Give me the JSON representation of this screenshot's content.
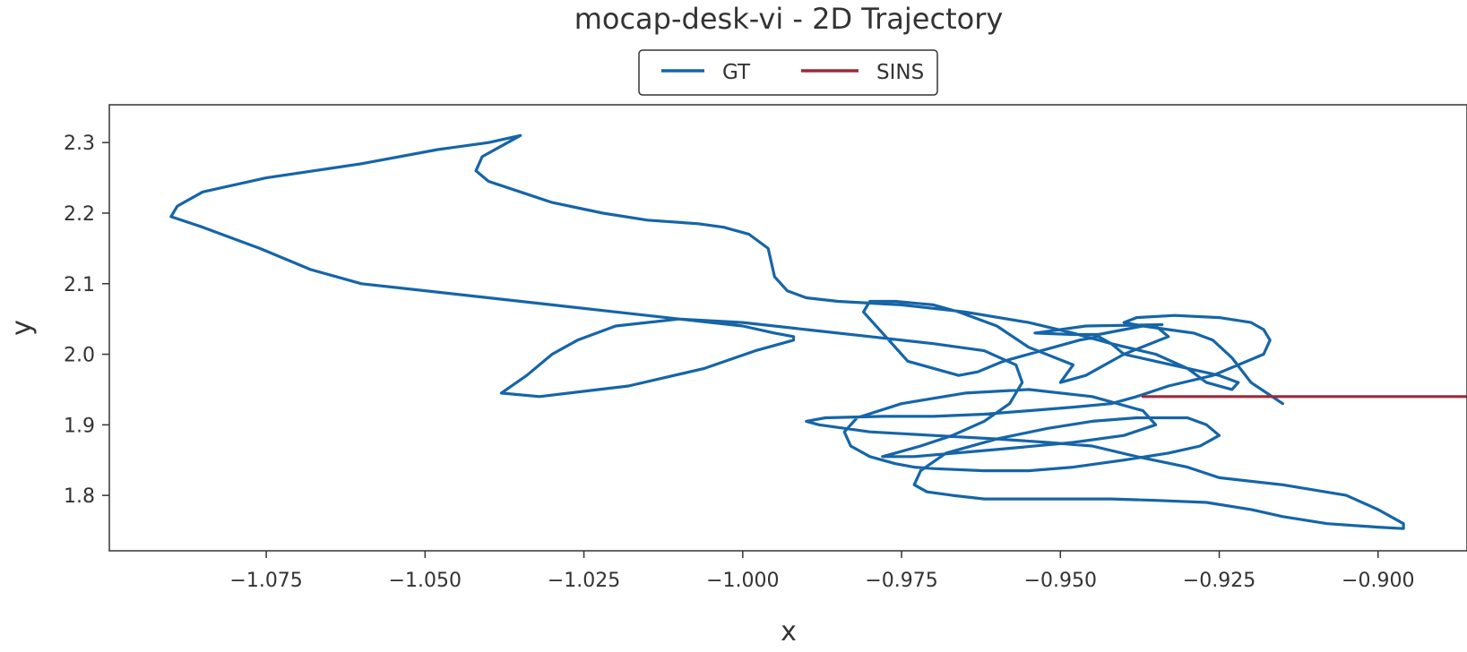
{
  "chart_data": {
    "type": "line",
    "title": "mocap-desk-vi - 2D Trajectory",
    "xlabel": "x",
    "ylabel": "y",
    "xlim": [
      -1.0997,
      -0.886
    ],
    "ylim": [
      1.7215,
      2.3535
    ],
    "xticks": [
      -1.075,
      -1.05,
      -1.025,
      -1.0,
      -0.975,
      -0.95,
      -0.925,
      -0.9
    ],
    "xtick_labels": [
      "−1.075",
      "−1.050",
      "−1.025",
      "−1.000",
      "−0.975",
      "−0.950",
      "−0.925",
      "−0.900"
    ],
    "yticks": [
      1.8,
      1.9,
      2.0,
      2.1,
      2.2,
      2.3
    ],
    "ytick_labels": [
      "1.8",
      "1.9",
      "2.0",
      "2.1",
      "2.2",
      "2.3"
    ],
    "grid": false,
    "legend": {
      "position": "top-center",
      "columns": 2
    },
    "series": [
      {
        "name": "GT",
        "color": "#1565a8",
        "x": [
          -0.934,
          -0.946,
          -0.954,
          -0.948,
          -0.944,
          -0.94,
          -0.937,
          -0.935,
          -0.933,
          -0.94,
          -0.946,
          -0.95,
          -0.948,
          -0.955,
          -0.96,
          -0.966,
          -0.97,
          -0.976,
          -0.98,
          -0.981,
          -0.978,
          -0.974,
          -0.966,
          -0.963,
          -0.959,
          -0.953,
          -0.947,
          -0.944,
          -0.942,
          -0.94,
          -0.935,
          -0.93,
          -0.925,
          -0.922,
          -0.923,
          -0.927,
          -0.93,
          -0.935,
          -0.942,
          -0.948,
          -0.955,
          -0.965,
          -0.975,
          -0.985,
          -0.99,
          -0.993,
          -0.995,
          -0.996,
          -0.999,
          -1.003,
          -1.007,
          -1.015,
          -1.022,
          -1.03,
          -1.035,
          -1.04,
          -1.042,
          -1.041,
          -1.037,
          -1.035,
          -1.04,
          -1.048,
          -1.06,
          -1.075,
          -1.085,
          -1.089,
          -1.09,
          -1.085,
          -1.076,
          -1.068,
          -1.06,
          -1.05,
          -1.04,
          -1.03,
          -1.02,
          -1.01,
          -1.0,
          -0.995,
          -0.992,
          -0.992,
          -0.998,
          -1.006,
          -1.018,
          -1.032,
          -1.038,
          -1.034,
          -1.03,
          -1.026,
          -1.02,
          -1.01,
          -1.0,
          -0.99,
          -0.98,
          -0.97,
          -0.962,
          -0.957,
          -0.956,
          -0.958,
          -0.962,
          -0.967,
          -0.972,
          -0.976,
          -0.978,
          -0.973,
          -0.96,
          -0.948,
          -0.94,
          -0.935,
          -0.937,
          -0.945,
          -0.955,
          -0.965,
          -0.975,
          -0.982,
          -0.984,
          -0.983,
          -0.98,
          -0.976,
          -0.973,
          -0.97,
          -0.962,
          -0.955,
          -0.948,
          -0.94,
          -0.933,
          -0.928,
          -0.925,
          -0.927,
          -0.93,
          -0.938,
          -0.945,
          -0.952,
          -0.96,
          -0.968,
          -0.972,
          -0.973,
          -0.971,
          -0.967,
          -0.964,
          -0.962,
          -0.958,
          -0.95,
          -0.942,
          -0.935,
          -0.927,
          -0.92,
          -0.915,
          -0.908,
          -0.9,
          -0.896,
          -0.896,
          -0.9,
          -0.905,
          -0.915,
          -0.925,
          -0.93,
          -0.938,
          -0.945,
          -0.952,
          -0.96,
          -0.97,
          -0.98,
          -0.988,
          -0.99,
          -0.987,
          -0.978,
          -0.97,
          -0.962,
          -0.955,
          -0.948,
          -0.942,
          -0.938,
          -0.933,
          -0.926,
          -0.922,
          -0.918,
          -0.917,
          -0.918,
          -0.92,
          -0.925,
          -0.932,
          -0.938,
          -0.94,
          -0.937,
          -0.933,
          -0.929,
          -0.926,
          -0.923,
          -0.92,
          -0.915
        ],
        "y": [
          2.042,
          2.04,
          2.03,
          2.028,
          2.028,
          2.035,
          2.04,
          2.04,
          2.025,
          2.0,
          1.97,
          1.96,
          1.985,
          2.01,
          2.04,
          2.06,
          2.07,
          2.075,
          2.075,
          2.06,
          2.03,
          1.99,
          1.97,
          1.975,
          1.99,
          2.005,
          2.02,
          2.025,
          2.015,
          2.0,
          1.99,
          1.98,
          1.97,
          1.96,
          1.95,
          1.96,
          1.98,
          2.0,
          2.015,
          2.03,
          2.045,
          2.06,
          2.07,
          2.075,
          2.08,
          2.09,
          2.11,
          2.15,
          2.17,
          2.18,
          2.185,
          2.19,
          2.2,
          2.215,
          2.23,
          2.245,
          2.26,
          2.28,
          2.3,
          2.31,
          2.3,
          2.29,
          2.27,
          2.25,
          2.23,
          2.21,
          2.195,
          2.18,
          2.15,
          2.12,
          2.1,
          2.09,
          2.08,
          2.07,
          2.06,
          2.05,
          2.04,
          2.03,
          2.025,
          2.02,
          2.005,
          1.98,
          1.955,
          1.94,
          1.945,
          1.97,
          2.0,
          2.02,
          2.04,
          2.05,
          2.045,
          2.035,
          2.025,
          2.015,
          2.005,
          1.985,
          1.96,
          1.93,
          1.905,
          1.885,
          1.87,
          1.86,
          1.855,
          1.855,
          1.865,
          1.875,
          1.885,
          1.9,
          1.92,
          1.94,
          1.95,
          1.945,
          1.93,
          1.91,
          1.89,
          1.87,
          1.855,
          1.845,
          1.84,
          1.838,
          1.835,
          1.835,
          1.84,
          1.85,
          1.86,
          1.87,
          1.885,
          1.9,
          1.91,
          1.91,
          1.905,
          1.895,
          1.88,
          1.86,
          1.835,
          1.815,
          1.805,
          1.8,
          1.797,
          1.795,
          1.795,
          1.795,
          1.795,
          1.793,
          1.79,
          1.78,
          1.77,
          1.76,
          1.755,
          1.753,
          1.76,
          1.78,
          1.8,
          1.815,
          1.825,
          1.84,
          1.855,
          1.87,
          1.875,
          1.88,
          1.885,
          1.89,
          1.9,
          1.905,
          1.91,
          1.912,
          1.912,
          1.915,
          1.92,
          1.925,
          1.93,
          1.94,
          1.955,
          1.97,
          1.985,
          2.0,
          2.02,
          2.035,
          2.045,
          2.052,
          2.055,
          2.052,
          2.045,
          2.04,
          2.035,
          2.03,
          2.02,
          1.995,
          1.96,
          1.93
        ]
      },
      {
        "name": "SINS",
        "color": "#9e2a3a",
        "x": [
          -0.937,
          -0.886
        ],
        "y": [
          1.94,
          1.94
        ]
      }
    ]
  }
}
